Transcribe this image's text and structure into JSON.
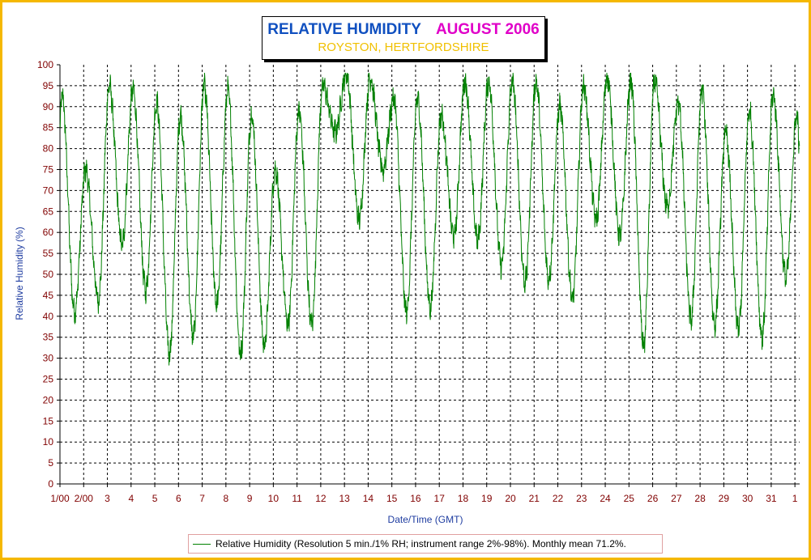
{
  "chart_data": {
    "type": "line",
    "title": "RELATIVE HUMIDITY",
    "title_period": "AUGUST 2006",
    "subtitle": "ROYSTON, HERTFORDSHIRE",
    "xlabel": "Date/Time (GMT)",
    "ylabel": "Relative Humidity (%)",
    "ylim": [
      0,
      100
    ],
    "y_ticks": [
      "0",
      "5",
      "10",
      "15",
      "20",
      "25",
      "30",
      "35",
      "40",
      "45",
      "50",
      "55",
      "60",
      "65",
      "70",
      "75",
      "80",
      "85",
      "90",
      "95",
      "100"
    ],
    "x_tick_labels": [
      "1/00",
      "2/00",
      "3",
      "4",
      "5",
      "6",
      "7",
      "8",
      "9",
      "10",
      "11",
      "12",
      "13",
      "14",
      "15",
      "16",
      "17",
      "18",
      "19",
      "20",
      "21",
      "22",
      "23",
      "24",
      "25",
      "26",
      "27",
      "28",
      "29",
      "30",
      "31",
      "1"
    ],
    "xlim_days": [
      0,
      31.2
    ],
    "grid": true,
    "legend_position": "bottom",
    "series": [
      {
        "name": "Relative Humidity (Resolution 5 min./1% RH; instrument range 2%-98%). Monthly mean 71.2%.",
        "color": "#008000",
        "daily_max": [
          93,
          75,
          95,
          94,
          91,
          88,
          95,
          94,
          88,
          75,
          89,
          95,
          98,
          97,
          92,
          92,
          88,
          96,
          96,
          96,
          96,
          90,
          95,
          97,
          96,
          96,
          91,
          94,
          84,
          89,
          93,
          88
        ],
        "daily_min": [
          41,
          44,
          57,
          46,
          31,
          35,
          43,
          31,
          33,
          38,
          38,
          84,
          63,
          75,
          41,
          42,
          59,
          58,
          52,
          48,
          49,
          44,
          63,
          59,
          33,
          66,
          39,
          38,
          37,
          35,
          49
        ]
      }
    ]
  },
  "legend": {
    "label": "Relative Humidity (Resolution 5 min./1% RH; instrument range 2%-98%). Monthly mean 71.2%."
  }
}
